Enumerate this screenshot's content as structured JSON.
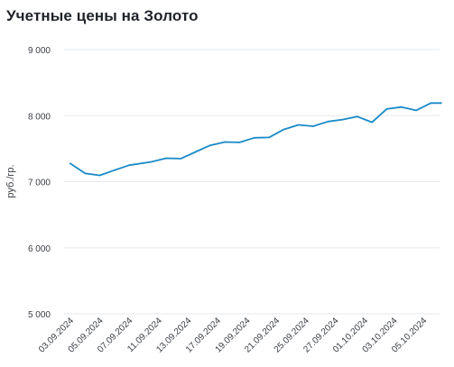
{
  "page": {
    "title": "Учетные цены на Золото"
  },
  "chart_data": {
    "type": "line",
    "title": "Учетные цены на Золото",
    "xlabel": "",
    "ylabel": "руб./гр.",
    "ylim": [
      5000,
      9000
    ],
    "yticks": [
      5000,
      6000,
      7000,
      8000,
      9000
    ],
    "ytick_labels": [
      "5 000",
      "6 000",
      "7 000",
      "8 000",
      "9 000"
    ],
    "xtick_labels": [
      "03.09.2024",
      "05.09.2024",
      "07.09.2024",
      "11.09.2024",
      "13.09.2024",
      "17.09.2024",
      "19.09.2024",
      "21.09.2024",
      "25.09.2024",
      "27.09.2024",
      "01.10.2024",
      "03.10.2024",
      "05.10.2024"
    ],
    "grid": true,
    "legend": "none",
    "series": [
      {
        "color": "#1a8ac6",
        "x": [
          "03.09.2024",
          "04.09.2024",
          "05.09.2024",
          "06.09.2024",
          "07.09.2024",
          "10.09.2024",
          "11.09.2024",
          "12.09.2024",
          "13.09.2024",
          "14.09.2024",
          "17.09.2024",
          "18.09.2024",
          "19.09.2024",
          "20.09.2024",
          "21.09.2024",
          "24.09.2024",
          "25.09.2024",
          "26.09.2024",
          "27.09.2024",
          "28.09.2024",
          "01.10.2024",
          "02.10.2024",
          "03.10.2024",
          "04.10.2024",
          "05.10.2024",
          "08.10.2024"
        ],
        "values": [
          7275,
          7125,
          7095,
          7175,
          7250,
          7300,
          7355,
          7350,
          7450,
          7550,
          7600,
          7595,
          7665,
          7670,
          7790,
          7860,
          7840,
          7910,
          7940,
          7985,
          7900,
          8100,
          8130,
          8080,
          8190,
          8190
        ]
      }
    ],
    "point_positions": [
      0,
      1,
      2,
      3,
      4,
      5.5,
      6.5,
      7.5,
      8.5,
      9.5,
      10.5,
      11.5,
      12.5,
      13.5,
      14.5,
      15.5,
      16.5,
      17.5,
      18.5,
      19.5,
      20.5,
      21.5,
      22.5,
      23.5,
      24.5,
      25.2
    ],
    "colors": {
      "line": "#1a8ac6",
      "grid": "#e6e8ec",
      "tick_text": "#3a3d44",
      "axis_label": "#3a3d44"
    }
  }
}
